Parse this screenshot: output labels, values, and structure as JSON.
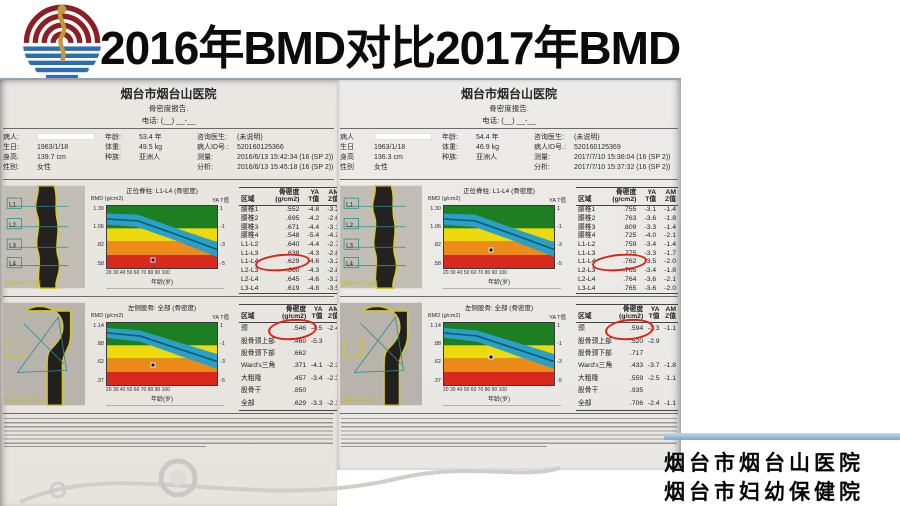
{
  "slide": {
    "title": "2016年BMD对比2017年BMD",
    "footer": {
      "line1": "烟台市烟台山医院",
      "line2": "烟台市妇幼保健院"
    }
  },
  "reports": [
    {
      "header": {
        "hospital": "烟台市烟台山医院",
        "subtitle": "骨密度报告.",
        "phone": "电话: (__)  __-__"
      },
      "patient": {
        "left": [
          [
            "病人:",
            ""
          ],
          [
            "生日:",
            "1963/1/18"
          ],
          [
            "身高:",
            "139.7 cm"
          ],
          [
            "性别:",
            "女性"
          ]
        ],
        "mid": [
          [
            "年龄:",
            "53.4 年"
          ],
          [
            "体重:",
            "49.5 kg"
          ],
          [
            "种族:",
            "亚洲人"
          ]
        ],
        "right": [
          [
            "咨询医生:",
            "(未说明)"
          ],
          [
            "病人ID号.:",
            "520160125366"
          ],
          [
            "测量:",
            "2016/6/13 15:42:34 (16 (SP 2))"
          ],
          [
            "分析:",
            "2016/6/13 15:45:18 (16 (SP 2))"
          ]
        ]
      },
      "spine": {
        "title": "正位脊柱: L1-L4 (骨密度)",
        "chart": {
          "type": "reference-band",
          "ylabel": "BMD (g/cm2)",
          "right_label": "YA T值",
          "y_ticks": [
            "1.30",
            "1.06",
            ".82",
            ".58"
          ],
          "t_ticks": [
            "1",
            "-1",
            "-3",
            "-5"
          ],
          "x_ticks": "20 30 40 50 60 70 80 90 100",
          "xlabel": "年龄(岁)",
          "marker": {
            "age": 53.4,
            "t": -4.6
          }
        },
        "xray_labels": [
          "L1",
          "L2",
          "L3",
          "L4"
        ],
        "xray_caption": "图像不用于诊断",
        "table": {
          "headers": [
            "区域",
            "骨密度\n(g/cm2)",
            "YA\nT值",
            "AM\nZ值"
          ],
          "circled_row": 6,
          "rows": [
            [
              "腰椎1",
              ".552",
              "-4.8",
              "-3.2"
            ],
            [
              "腰椎2",
              ".695",
              "-4.2",
              "-2.6"
            ],
            [
              "腰椎3",
              ".671",
              "-4.4",
              "-3.1"
            ],
            [
              "腰椎4",
              ".548",
              "-5.4",
              "-4.2"
            ],
            [
              "L1-L2",
              ".640",
              "-4.4",
              "-2.7"
            ],
            [
              "L1-L3",
              ".638",
              "-4.3",
              "-2.8"
            ],
            [
              "L1-L4",
              ".629",
              "-4.6",
              "-3.2"
            ],
            [
              "L2-L3",
              ".660",
              "-4.3",
              "-2.8"
            ],
            [
              "L2-L4",
              ".645",
              "-4.6",
              "-3.2"
            ],
            [
              "L3-L4",
              ".619",
              "-4.8",
              "-3.5"
            ]
          ]
        }
      },
      "femur": {
        "title": "左侧股骨: 全部 (骨密度)",
        "chart": {
          "type": "reference-band",
          "ylabel": "BMD (g/cm2)",
          "right_label": "YA T值",
          "y_ticks": [
            "1.14",
            ".88",
            ".62",
            ".37"
          ],
          "t_ticks": [
            "1",
            "-1",
            "-3",
            "-5"
          ],
          "x_ticks": "20 30 40 50 60 70 80 90 100",
          "xlabel": "年龄(岁)",
          "marker": {
            "age": 53.4,
            "t": -3.3
          }
        },
        "xray_caption": "图像不用于诊断",
        "table": {
          "headers": [
            "区域",
            "骨密度\n(g/cm2)",
            "YA\nT值",
            "AM\nZ值"
          ],
          "circled_row": 0,
          "rows": [
            [
              "颈",
              ".546",
              "-4.5",
              "-2.4"
            ],
            [
              "股骨颈上部",
              ".460",
              "-5.3",
              ""
            ],
            [
              "股骨颈下部",
              ".662",
              "",
              ""
            ],
            [
              "Ward's三角",
              ".371",
              "-4.1",
              "-2.3"
            ],
            [
              "大粗隆",
              ".457",
              "-3.4",
              "-2.3"
            ],
            [
              "股骨干",
              ".850",
              "",
              ""
            ],
            [
              "全部",
              ".629",
              "-3.3",
              "-2.1"
            ]
          ]
        }
      }
    },
    {
      "header": {
        "hospital": "烟台市烟台山医院",
        "subtitle": "骨密度报告.",
        "phone": "电话: (__)  __-__"
      },
      "patient": {
        "left": [
          [
            "病人",
            ""
          ],
          [
            "生日",
            "1963/1/18"
          ],
          [
            "身高",
            "136.3 cm"
          ],
          [
            "性别",
            "女性"
          ]
        ],
        "mid": [
          [
            "年龄:",
            "54.4 年"
          ],
          [
            "体重:",
            "46.9 kg"
          ],
          [
            "种族:",
            "亚洲人"
          ]
        ],
        "right": [
          [
            "咨询医生:",
            "(未说明)"
          ],
          [
            "病人ID号.:",
            "520160125369"
          ],
          [
            "测量:",
            "2017/7/10 15:36:04 (16 (SP 2))"
          ],
          [
            "分析:",
            "2017/7/10 15:37:32 (16 (SP 2))"
          ]
        ]
      },
      "spine": {
        "title": "正位脊柱: L1-L4 (骨密度)",
        "chart": {
          "type": "reference-band",
          "ylabel": "BMD (g/cm2)",
          "right_label": "YA T值",
          "y_ticks": [
            "1.30",
            "1.06",
            ".82",
            ".58"
          ],
          "t_ticks": [
            "1",
            "-1",
            "-3",
            "-5"
          ],
          "x_ticks": "20 30 40 50 60 70 80 90 100",
          "xlabel": "年龄(岁)",
          "marker": {
            "age": 54.4,
            "t": -3.5
          }
        },
        "xray_labels": [
          "L1",
          "L2",
          "L3",
          "L4"
        ],
        "xray_caption": "图像不用于诊断",
        "table": {
          "headers": [
            "区域",
            "骨密度\n(g/cm2)",
            "YA\nT值",
            "AM\nZ值"
          ],
          "circled_row": 6,
          "rows": [
            [
              "腰椎1",
              ".755",
              "-3.1",
              "-1.4"
            ],
            [
              "腰椎2",
              ".763",
              "-3.6",
              "-1.8"
            ],
            [
              "腰椎3",
              ".809",
              "-3.3",
              "-1.4"
            ],
            [
              "腰椎4",
              ".725",
              "-4.0",
              "-2.1"
            ],
            [
              "L1-L2",
              ".759",
              "-3.4",
              "-1.4"
            ],
            [
              "L1-L3",
              ".775",
              "-3.3",
              "-1.7"
            ],
            [
              "L1-L4",
              ".762",
              "-3.5",
              "-2.0"
            ],
            [
              "L2-L3",
              ".765",
              "-3.4",
              "-1.8"
            ],
            [
              "L2-L4",
              ".764",
              "-3.6",
              "-2.1"
            ],
            [
              "L3-L4",
              ".765",
              "-3.6",
              "-2.0"
            ]
          ]
        }
      },
      "femur": {
        "title": "左侧股骨: 全部 (骨密度)",
        "chart": {
          "type": "reference-band",
          "ylabel": "BMD (g/cm2)",
          "right_label": "YA T值",
          "y_ticks": [
            "1.14",
            ".88",
            ".62",
            ".37"
          ],
          "t_ticks": [
            "1",
            "-1",
            "-3",
            "-5"
          ],
          "x_ticks": "20 30 40 50 60 70 80 90 100",
          "xlabel": "年龄(岁)",
          "marker": {
            "age": 54.4,
            "t": -2.4
          }
        },
        "xray_caption": "图像不用于诊断",
        "table": {
          "headers": [
            "区域",
            "骨密度\n(g/cm2)",
            "YA\nT值",
            "AM\nZ值"
          ],
          "circled_row": 0,
          "rows": [
            [
              "颈",
              ".594",
              "-3.3",
              "-1.1"
            ],
            [
              "股骨颈上部",
              ".520",
              "-2.9",
              ""
            ],
            [
              "股骨颈下部",
              ".717",
              "",
              ""
            ],
            [
              "Ward's三角",
              ".433",
              "-3.7",
              "-1.8"
            ],
            [
              "大粗隆",
              ".559",
              "-2.5",
              "-1.1"
            ],
            [
              "股骨干",
              ".935",
              "",
              ""
            ],
            [
              "全部",
              ".706",
              "-2.4",
              "-1.1"
            ]
          ]
        }
      }
    }
  ]
}
